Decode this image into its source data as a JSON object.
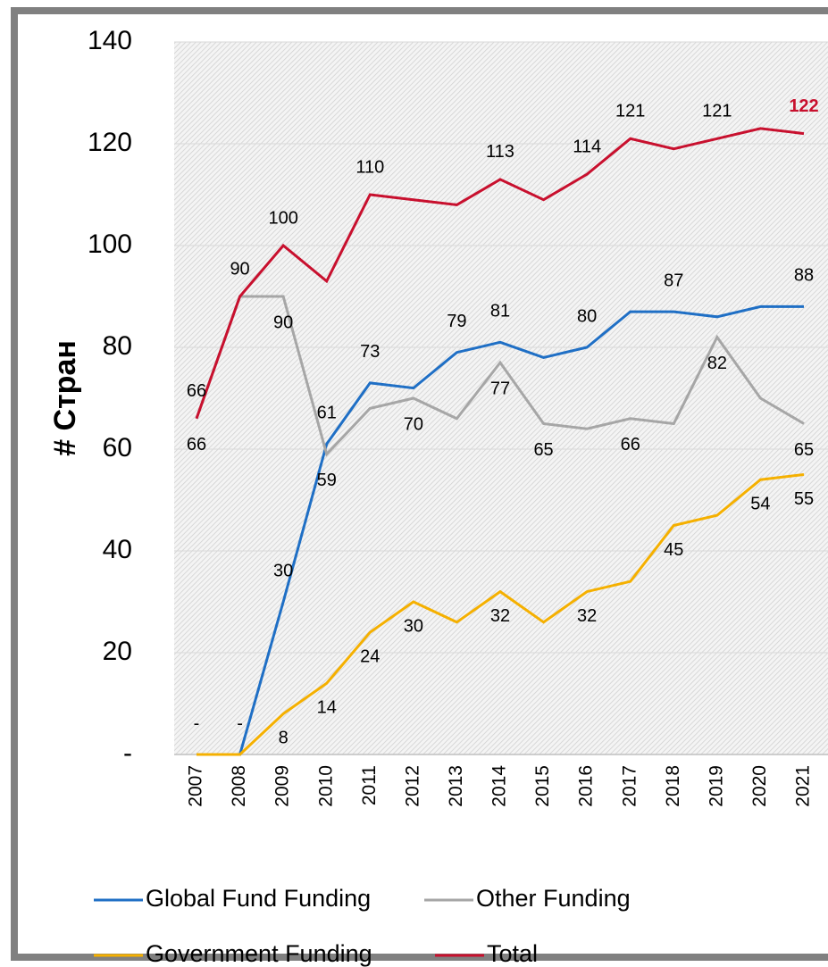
{
  "chart_data": {
    "type": "line",
    "ylabel": "# Стран",
    "categories": [
      "2007",
      "2008",
      "2009",
      "2010",
      "2011",
      "2012",
      "2013",
      "2014",
      "2015",
      "2016",
      "2017",
      "2018",
      "2019",
      "2020",
      "2021"
    ],
    "ylim": [
      0,
      140
    ],
    "yticks": [
      {
        "value": 0,
        "label": "-"
      },
      20,
      40,
      60,
      80,
      100,
      120,
      140
    ],
    "grid": true,
    "series": [
      {
        "name": "Global Fund Funding",
        "color": "#1f6fc5",
        "values": [
          0,
          0,
          30,
          61,
          73,
          72,
          79,
          81,
          78,
          80,
          87,
          87,
          86,
          88,
          88
        ],
        "value_labels": [
          "-",
          "-",
          "30",
          "61",
          "73",
          null,
          "79",
          "81",
          null,
          "80",
          null,
          "87",
          null,
          null,
          "88"
        ]
      },
      {
        "name": "Other Funding",
        "color": "#a6a6a6",
        "values": [
          66,
          90,
          90,
          59,
          68,
          70,
          66,
          77,
          65,
          64,
          66,
          65,
          82,
          70,
          65
        ],
        "value_labels": [
          "66",
          null,
          "90",
          "59",
          null,
          "70",
          null,
          "77",
          "65",
          null,
          "66",
          null,
          "82",
          null,
          "65"
        ]
      },
      {
        "name": "Government Funding",
        "color": "#f5b000",
        "values": [
          0,
          0,
          8,
          14,
          24,
          30,
          26,
          32,
          26,
          32,
          34,
          45,
          47,
          54,
          55
        ],
        "value_labels": [
          null,
          null,
          "8",
          "14",
          "24",
          "30",
          null,
          "32",
          null,
          "32",
          null,
          "45",
          null,
          "54",
          "55"
        ]
      },
      {
        "name": "Total",
        "color": "#c8102e",
        "values": [
          66,
          90,
          100,
          93,
          110,
          109,
          108,
          113,
          109,
          114,
          121,
          119,
          121,
          123,
          122
        ],
        "value_labels": [
          "66",
          "90",
          "100",
          null,
          "110",
          null,
          null,
          "113",
          null,
          "114",
          "121",
          null,
          "121",
          null,
          "122"
        ]
      }
    ]
  }
}
